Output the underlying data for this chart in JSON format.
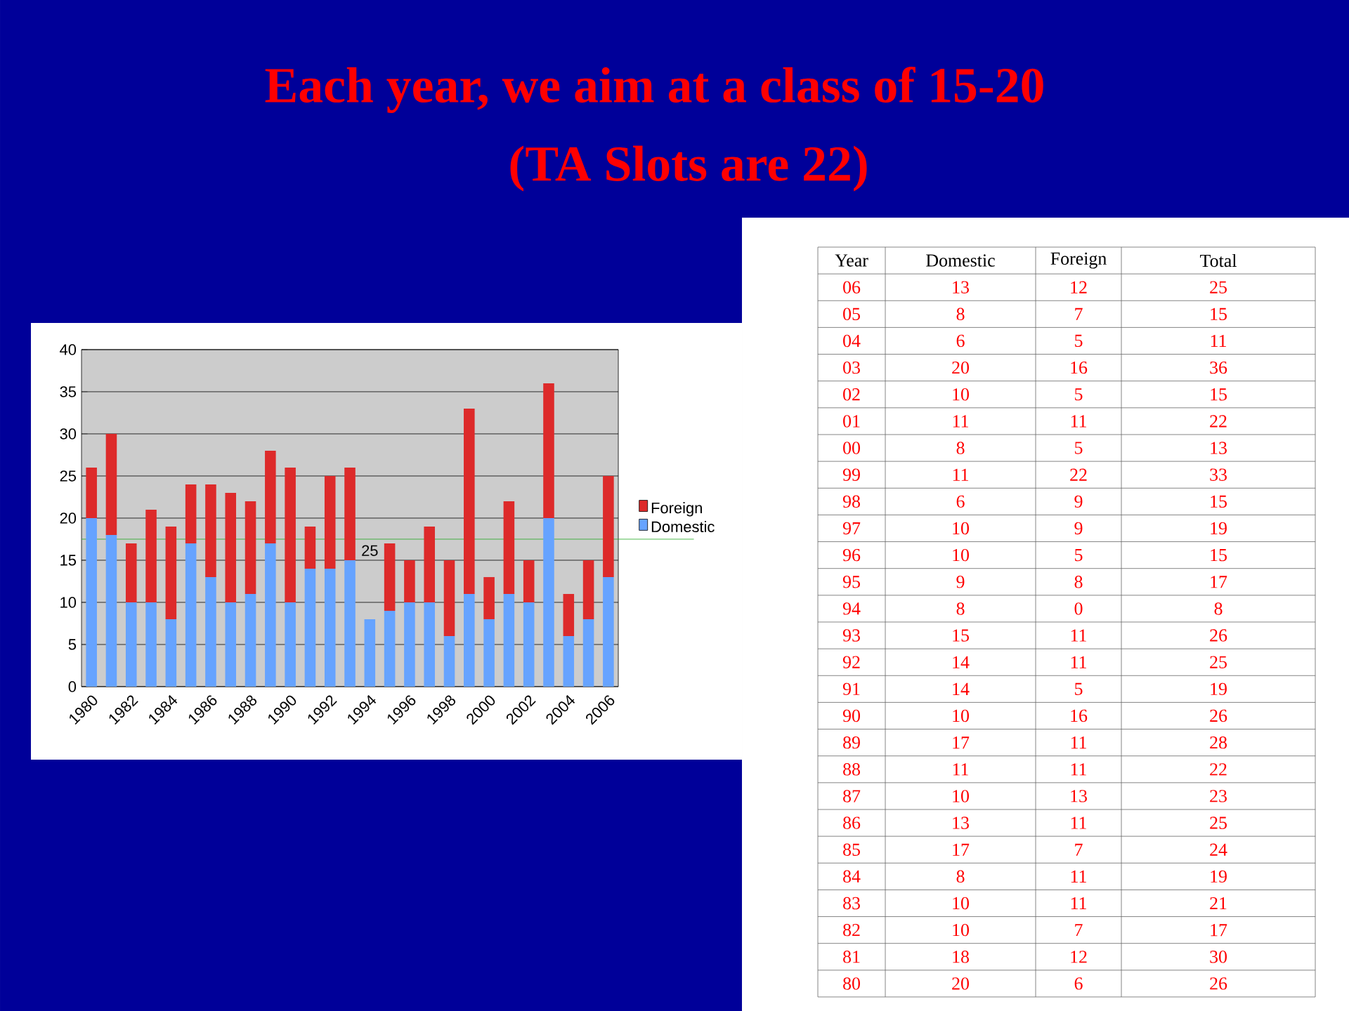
{
  "chart_data": [
    {
      "type": "bar",
      "title": "Each year, we aim at a class of 15-20",
      "subtitle": "(TA Slots are 22)",
      "stacked": true,
      "categories": [
        "1980",
        null,
        "1982",
        null,
        "1984",
        null,
        "1986",
        null,
        "1988",
        null,
        "1990",
        null,
        "1992",
        null,
        "1994",
        null,
        "1996",
        null,
        "1998",
        null,
        "2000",
        null,
        "2002",
        null,
        "2004",
        null,
        "2006"
      ],
      "series": [
        {
          "name": "Domestic",
          "color": "#66a3ff",
          "values": [
            20,
            18,
            10,
            10,
            8,
            17,
            13,
            10,
            11,
            17,
            10,
            14,
            14,
            15,
            8,
            9,
            10,
            10,
            6,
            11,
            8,
            11,
            10,
            20,
            6,
            8,
            13
          ]
        },
        {
          "name": "Foreign",
          "color": "#dd2a2a",
          "values": [
            6,
            12,
            7,
            11,
            11,
            7,
            11,
            13,
            11,
            11,
            16,
            5,
            11,
            11,
            0,
            8,
            5,
            9,
            9,
            22,
            5,
            11,
            5,
            16,
            5,
            7,
            12
          ]
        }
      ],
      "ylim": [
        0,
        40
      ],
      "yticks": [
        0,
        5,
        10,
        15,
        20,
        25,
        30,
        35,
        40
      ],
      "grid": "y",
      "legend": "right",
      "ref_lines": [
        {
          "axis": "y",
          "value": 17.5,
          "color": "#22aa22"
        }
      ],
      "annotations": [
        "25"
      ]
    },
    {
      "type": "heatmap",
      "ylabel": "Year",
      "categories": [
        "Domestic",
        "Foreign",
        "Total"
      ],
      "y_categories": [
        "06",
        "05",
        "04",
        "03",
        "02",
        "01",
        "00",
        "99",
        "98",
        "97",
        "96",
        "95",
        "94",
        "93",
        "92",
        "91",
        "90",
        "89",
        "88",
        "87",
        "86",
        "85",
        "84",
        "83",
        "82",
        "81",
        "80"
      ],
      "cells": [
        [
          13,
          12,
          25
        ],
        [
          8,
          7,
          15
        ],
        [
          6,
          5,
          11
        ],
        [
          20,
          16,
          36
        ],
        [
          10,
          5,
          15
        ],
        [
          11,
          11,
          22
        ],
        [
          8,
          5,
          13
        ],
        [
          11,
          22,
          33
        ],
        [
          6,
          9,
          15
        ],
        [
          10,
          9,
          19
        ],
        [
          10,
          5,
          15
        ],
        [
          9,
          8,
          17
        ],
        [
          8,
          0,
          8
        ],
        [
          15,
          11,
          26
        ],
        [
          14,
          11,
          25
        ],
        [
          14,
          5,
          19
        ],
        [
          10,
          16,
          26
        ],
        [
          17,
          11,
          28
        ],
        [
          11,
          11,
          22
        ],
        [
          10,
          13,
          23
        ],
        [
          13,
          11,
          25
        ],
        [
          17,
          7,
          24
        ],
        [
          8,
          11,
          19
        ],
        [
          10,
          11,
          21
        ],
        [
          10,
          7,
          17
        ],
        [
          18,
          12,
          30
        ],
        [
          20,
          6,
          26
        ]
      ],
      "data_labels": true
    }
  ]
}
